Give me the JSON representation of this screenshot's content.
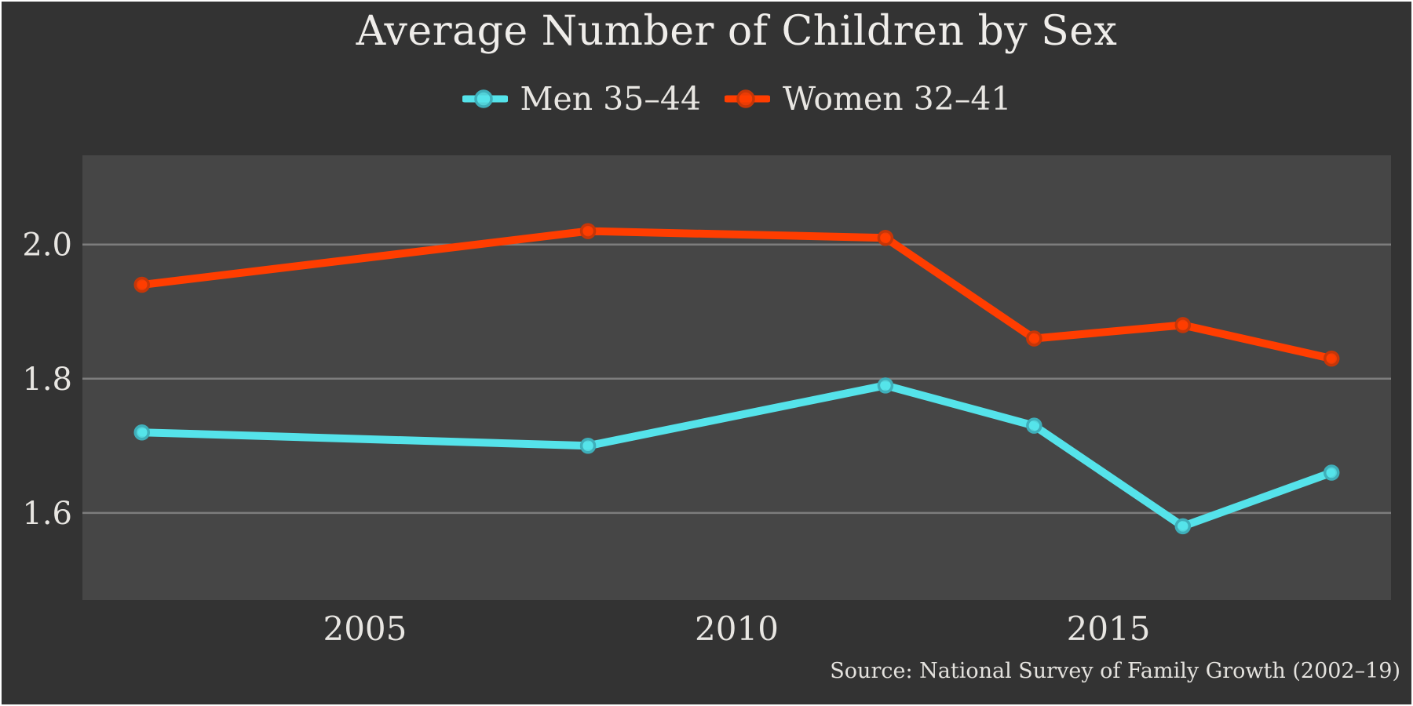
{
  "chart_data": {
    "type": "line",
    "title": "Average Number of Children by Sex",
    "source": "Source: National Survey of Family Growth (2002–19)",
    "x": [
      2002,
      2008,
      2012,
      2014,
      2016,
      2018
    ],
    "series": [
      {
        "name": "Men 35–44",
        "values": [
          1.72,
          1.7,
          1.79,
          1.73,
          1.58,
          1.66
        ],
        "color": "#55E3EA",
        "marker_edge": "#3FAFBA"
      },
      {
        "name": "Women 32–41",
        "values": [
          1.94,
          2.02,
          2.01,
          1.86,
          1.88,
          1.83
        ],
        "color": "#FF3D00",
        "marker_edge": "#C63608"
      }
    ],
    "xticks": [
      {
        "value": 2005,
        "label": "2005"
      },
      {
        "value": 2010,
        "label": "2010"
      },
      {
        "value": 2015,
        "label": "2015"
      }
    ],
    "yticks": [
      {
        "value": 1.6,
        "label": "1.6"
      },
      {
        "value": 1.8,
        "label": "1.8"
      },
      {
        "value": 2.0,
        "label": "2.0"
      }
    ],
    "xlim": [
      2001.2,
      2018.8
    ],
    "ylim": [
      1.47,
      2.133
    ],
    "grid": true,
    "legend_position": "top-center",
    "xlabel": "",
    "ylabel": ""
  },
  "style": {
    "page_bg": "#333333",
    "plot_bg": "#464646",
    "grid_color": "#7d7d7d",
    "text_color": "#e8e6e2",
    "title_color": "#efedea",
    "border_color": "#ffffff"
  }
}
